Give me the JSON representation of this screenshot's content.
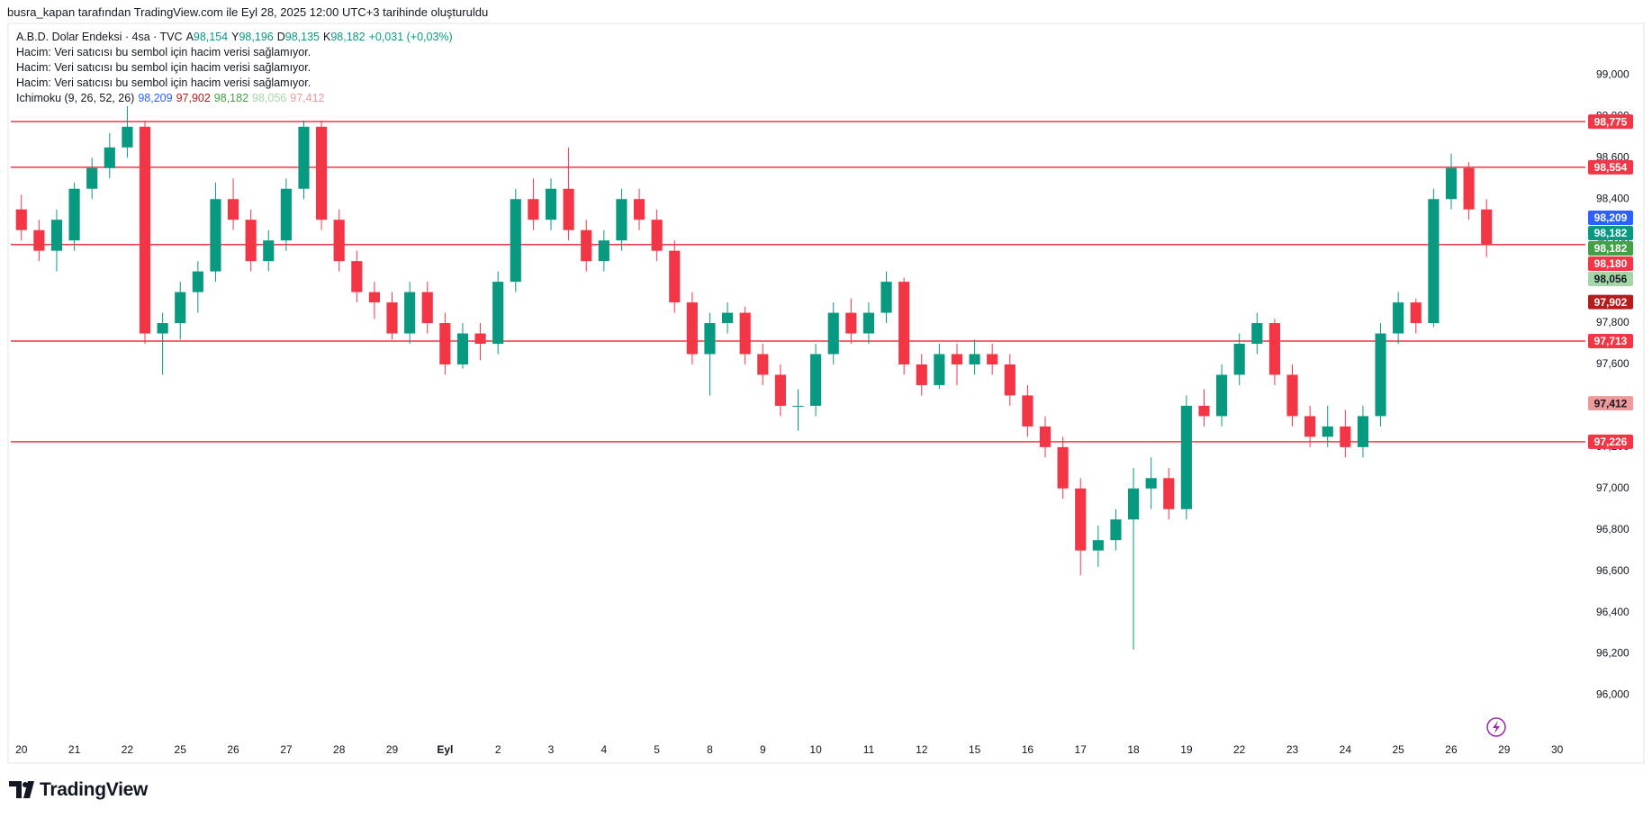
{
  "header": "busra_kapan tarafından TradingView.com ile Eyl 28, 2025 12:00 UTC+3 tarihinde oluşturuldu",
  "legend": {
    "symbol": "A.B.D. Dolar Endeksi · 4sa · TVC",
    "ohlc": [
      {
        "key": "A",
        "value": "98,154"
      },
      {
        "key": "Y",
        "value": "98,196"
      },
      {
        "key": "D",
        "value": "98,135"
      },
      {
        "key": "K",
        "value": "98,182"
      }
    ],
    "change": "+0,031 (+0,03%)",
    "volume_notes": [
      "Hacim: Veri satıcısı bu sembol için hacim verisi sağlamıyor.",
      "Hacim: Veri satıcısı bu sembol için hacim verisi sağlamıyor.",
      "Hacim: Veri satıcısı bu sembol için hacim verisi sağlamıyor."
    ],
    "indicator": "Ichimoku (9, 26, 52, 26)",
    "indicator_values": [
      {
        "value": "98,209",
        "color": "#2962ff"
      },
      {
        "value": "97,902",
        "color": "#b71c1c"
      },
      {
        "value": "98,182",
        "color": "#43a047"
      },
      {
        "value": "98,056",
        "color": "#a5d6a7"
      },
      {
        "value": "97,412",
        "color": "#ef9a9a"
      }
    ]
  },
  "brand": "TradingView",
  "chart_data": {
    "type": "candlestick",
    "up_color": "#089981",
    "down_color": "#f23645",
    "candles": [
      [
        98.35,
        98.42,
        98.2,
        98.25
      ],
      [
        98.25,
        98.3,
        98.1,
        98.15
      ],
      [
        98.15,
        98.35,
        98.05,
        98.3
      ],
      [
        98.2,
        98.48,
        98.15,
        98.45
      ],
      [
        98.45,
        98.6,
        98.4,
        98.55
      ],
      [
        98.55,
        98.72,
        98.5,
        98.65
      ],
      [
        98.65,
        98.85,
        98.6,
        98.75
      ],
      [
        98.75,
        98.78,
        97.7,
        97.75
      ],
      [
        97.75,
        97.85,
        97.55,
        97.8
      ],
      [
        97.8,
        98.0,
        97.72,
        97.95
      ],
      [
        97.95,
        98.1,
        97.85,
        98.05
      ],
      [
        98.05,
        98.48,
        98.0,
        98.4
      ],
      [
        98.4,
        98.5,
        98.25,
        98.3
      ],
      [
        98.3,
        98.35,
        98.05,
        98.1
      ],
      [
        98.1,
        98.25,
        98.05,
        98.2
      ],
      [
        98.2,
        98.5,
        98.15,
        98.45
      ],
      [
        98.45,
        98.78,
        98.4,
        98.75
      ],
      [
        98.75,
        98.78,
        98.25,
        98.3
      ],
      [
        98.3,
        98.35,
        98.05,
        98.1
      ],
      [
        98.1,
        98.15,
        97.9,
        97.95
      ],
      [
        97.95,
        98.0,
        97.82,
        97.9
      ],
      [
        97.9,
        97.95,
        97.72,
        97.75
      ],
      [
        97.75,
        98.0,
        97.7,
        97.95
      ],
      [
        97.95,
        98.0,
        97.75,
        97.8
      ],
      [
        97.8,
        97.85,
        97.55,
        97.6
      ],
      [
        97.6,
        97.8,
        97.58,
        97.75
      ],
      [
        97.75,
        97.8,
        97.62,
        97.7
      ],
      [
        97.7,
        98.05,
        97.65,
        98.0
      ],
      [
        98.0,
        98.45,
        97.95,
        98.4
      ],
      [
        98.4,
        98.5,
        98.25,
        98.3
      ],
      [
        98.3,
        98.5,
        98.25,
        98.45
      ],
      [
        98.45,
        98.65,
        98.2,
        98.25
      ],
      [
        98.25,
        98.3,
        98.05,
        98.1
      ],
      [
        98.1,
        98.25,
        98.05,
        98.2
      ],
      [
        98.2,
        98.45,
        98.15,
        98.4
      ],
      [
        98.4,
        98.45,
        98.25,
        98.3
      ],
      [
        98.3,
        98.35,
        98.1,
        98.15
      ],
      [
        98.15,
        98.2,
        97.85,
        97.9
      ],
      [
        97.9,
        97.95,
        97.6,
        97.65
      ],
      [
        97.65,
        97.85,
        97.45,
        97.8
      ],
      [
        97.8,
        97.9,
        97.75,
        97.85
      ],
      [
        97.85,
        97.88,
        97.6,
        97.65
      ],
      [
        97.65,
        97.7,
        97.5,
        97.55
      ],
      [
        97.55,
        97.6,
        97.35,
        97.4
      ],
      [
        97.4,
        97.48,
        97.28,
        97.4
      ],
      [
        97.4,
        97.7,
        97.35,
        97.65
      ],
      [
        97.65,
        97.9,
        97.6,
        97.85
      ],
      [
        97.85,
        97.92,
        97.7,
        97.75
      ],
      [
        97.75,
        97.9,
        97.7,
        97.85
      ],
      [
        97.85,
        98.05,
        97.8,
        98.0
      ],
      [
        98.0,
        98.02,
        97.55,
        97.6
      ],
      [
        97.6,
        97.65,
        97.45,
        97.5
      ],
      [
        97.5,
        97.7,
        97.48,
        97.65
      ],
      [
        97.65,
        97.7,
        97.5,
        97.6
      ],
      [
        97.6,
        97.72,
        97.55,
        97.65
      ],
      [
        97.65,
        97.7,
        97.55,
        97.6
      ],
      [
        97.6,
        97.65,
        97.4,
        97.45
      ],
      [
        97.45,
        97.5,
        97.25,
        97.3
      ],
      [
        97.3,
        97.35,
        97.15,
        97.2
      ],
      [
        97.2,
        97.25,
        96.95,
        97.0
      ],
      [
        97.0,
        97.05,
        96.58,
        96.7
      ],
      [
        96.7,
        96.82,
        96.62,
        96.75
      ],
      [
        96.75,
        96.9,
        96.7,
        96.85
      ],
      [
        96.85,
        97.1,
        96.22,
        97.0
      ],
      [
        97.0,
        97.15,
        96.9,
        97.05
      ],
      [
        97.05,
        97.1,
        96.85,
        96.9
      ],
      [
        96.9,
        97.45,
        96.85,
        97.4
      ],
      [
        97.4,
        97.48,
        97.3,
        97.35
      ],
      [
        97.35,
        97.6,
        97.3,
        97.55
      ],
      [
        97.55,
        97.75,
        97.5,
        97.7
      ],
      [
        97.7,
        97.85,
        97.65,
        97.8
      ],
      [
        97.8,
        97.82,
        97.5,
        97.55
      ],
      [
        97.55,
        97.6,
        97.3,
        97.35
      ],
      [
        97.35,
        97.4,
        97.2,
        97.25
      ],
      [
        97.25,
        97.4,
        97.2,
        97.3
      ],
      [
        97.3,
        97.38,
        97.15,
        97.2
      ],
      [
        97.2,
        97.4,
        97.15,
        97.35
      ],
      [
        97.35,
        97.8,
        97.3,
        97.75
      ],
      [
        97.75,
        97.95,
        97.7,
        97.9
      ],
      [
        97.9,
        97.92,
        97.75,
        97.8
      ],
      [
        97.8,
        98.45,
        97.78,
        98.4
      ],
      [
        98.4,
        98.62,
        98.35,
        98.55
      ],
      [
        98.55,
        98.58,
        98.3,
        98.35
      ],
      [
        98.35,
        98.4,
        98.12,
        98.18
      ]
    ],
    "xlim": [
      -0.6,
      88.6
    ],
    "xticks": [
      {
        "value": 0,
        "label": "20"
      },
      {
        "value": 3,
        "label": "21"
      },
      {
        "value": 6,
        "label": "22"
      },
      {
        "value": 9,
        "label": "25"
      },
      {
        "value": 12,
        "label": "26"
      },
      {
        "value": 15,
        "label": "27"
      },
      {
        "value": 18,
        "label": "28"
      },
      {
        "value": 21,
        "label": "29"
      },
      {
        "value": 24,
        "label": "Eyl",
        "bold": true
      },
      {
        "value": 27,
        "label": "2"
      },
      {
        "value": 30,
        "label": "3"
      },
      {
        "value": 33,
        "label": "4"
      },
      {
        "value": 36,
        "label": "5"
      },
      {
        "value": 39,
        "label": "8"
      },
      {
        "value": 42,
        "label": "9"
      },
      {
        "value": 45,
        "label": "10"
      },
      {
        "value": 48,
        "label": "11"
      },
      {
        "value": 51,
        "label": "12"
      },
      {
        "value": 54,
        "label": "15"
      },
      {
        "value": 57,
        "label": "16"
      },
      {
        "value": 60,
        "label": "17"
      },
      {
        "value": 63,
        "label": "18"
      },
      {
        "value": 66,
        "label": "19"
      },
      {
        "value": 69,
        "label": "22"
      },
      {
        "value": 72,
        "label": "23"
      },
      {
        "value": 75,
        "label": "24"
      },
      {
        "value": 78,
        "label": "25"
      },
      {
        "value": 81,
        "label": "26"
      },
      {
        "value": 84,
        "label": "29"
      },
      {
        "value": 87,
        "label": "30"
      }
    ],
    "ylim": [
      95.78,
      99.25
    ],
    "yticks": [
      {
        "value": 96.0,
        "label": "96,000"
      },
      {
        "value": 96.2,
        "label": "96,200"
      },
      {
        "value": 96.4,
        "label": "96,400"
      },
      {
        "value": 96.6,
        "label": "96,600"
      },
      {
        "value": 96.8,
        "label": "96,800"
      },
      {
        "value": 97.0,
        "label": "97,000"
      },
      {
        "value": 97.2,
        "label": "97,200"
      },
      {
        "value": 97.4,
        "label": "97,400"
      },
      {
        "value": 97.6,
        "label": "97,600"
      },
      {
        "value": 97.8,
        "label": "97,800"
      },
      {
        "value": 98.0,
        "label": "98,000"
      },
      {
        "value": 98.2,
        "label": "98,200"
      },
      {
        "value": 98.4,
        "label": "98,400"
      },
      {
        "value": 98.6,
        "label": "98,600"
      },
      {
        "value": 98.8,
        "label": "98,800"
      },
      {
        "value": 99.0,
        "label": "99,000"
      }
    ],
    "grid": false,
    "hlines": [
      98.775,
      98.554,
      98.18,
      97.713,
      97.226
    ],
    "hline_color": "#f23645",
    "price_tags": [
      {
        "value": 98.775,
        "label": "98,775",
        "color": "#f23645",
        "text_color": "#ffffff"
      },
      {
        "value": 98.554,
        "label": "98,554",
        "color": "#f23645",
        "text_color": "#ffffff"
      },
      {
        "value": 98.209,
        "label": "98,209",
        "color": "#2962ff",
        "text_color": "#ffffff"
      },
      {
        "value": 98.182,
        "label": "98,182",
        "color": "#089981",
        "text_color": "#ffffff"
      },
      {
        "value": 98.182,
        "label": "98,182",
        "color": "#43a047",
        "text_color": "#ffffff"
      },
      {
        "value": 98.18,
        "label": "98,180",
        "color": "#f23645",
        "text_color": "#ffffff"
      },
      {
        "value": 98.056,
        "label": "98,056",
        "color": "#a5d6a7",
        "text_color": "#131722"
      },
      {
        "value": 97.902,
        "label": "97,902",
        "color": "#b71c1c",
        "text_color": "#ffffff"
      },
      {
        "value": 97.713,
        "label": "97,713",
        "color": "#f23645",
        "text_color": "#ffffff"
      },
      {
        "value": 97.412,
        "label": "97,412",
        "color": "#ef9a9a",
        "text_color": "#131722"
      },
      {
        "value": 97.226,
        "label": "97,226",
        "color": "#f23645",
        "text_color": "#ffffff"
      }
    ]
  }
}
